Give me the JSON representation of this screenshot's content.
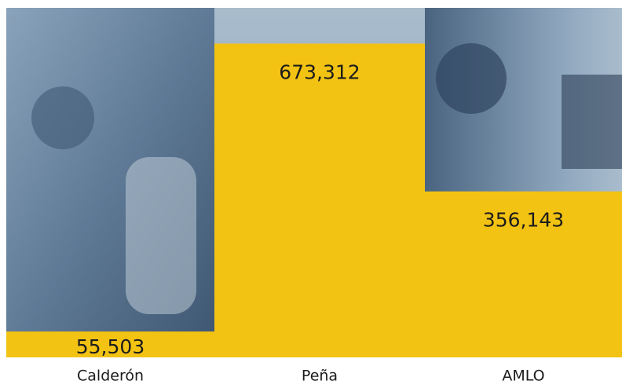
{
  "chart_data": {
    "type": "bar",
    "categories": [
      "Calderón",
      "Peña",
      "AMLO"
    ],
    "values": [
      55503,
      673312,
      356143
    ],
    "value_labels": [
      "55,503",
      "673,312",
      "356,143"
    ],
    "color": "#f3c313",
    "ylim": [
      0,
      750000
    ]
  }
}
